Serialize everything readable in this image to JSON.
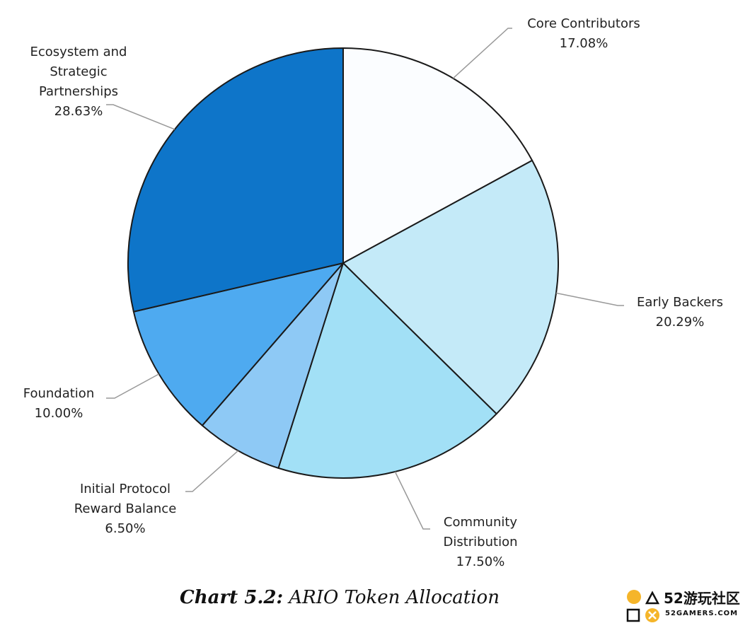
{
  "chart_data": {
    "type": "pie",
    "categories": [
      "Core Contributors",
      "Early Backers",
      "Community Distribution",
      "Initial Protocol Reward Balance",
      "Foundation",
      "Ecosystem and Strategic Partnerships"
    ],
    "values": [
      17.08,
      20.29,
      17.5,
      6.5,
      10.0,
      28.63
    ],
    "value_labels": [
      "17.08%",
      "20.29%",
      "17.50%",
      "6.50%",
      "10.00%",
      "28.63%"
    ],
    "colors": [
      "#fbfdff",
      "#c4eaf8",
      "#a2e0f6",
      "#8ec9f5",
      "#4eaaf0",
      "#0e75c9"
    ],
    "caption": {
      "label": "Chart 5.2:",
      "text": "ARIO Token Allocation"
    }
  },
  "watermark": {
    "brand": "52游玩社区",
    "site": "52GAMERS.COM"
  }
}
